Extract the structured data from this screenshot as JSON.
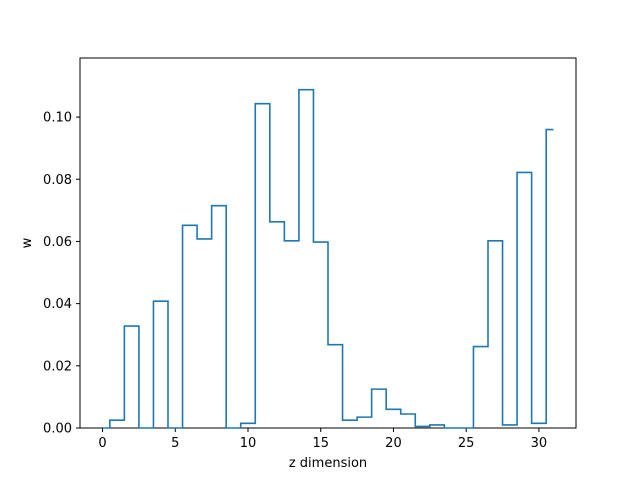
{
  "chart_data": {
    "type": "line",
    "drawstyle": "steps-mid",
    "title": "",
    "xlabel": "z dimension",
    "ylabel": "w",
    "xlim": [
      -1.55,
      32.55
    ],
    "ylim": [
      0.0,
      0.119
    ],
    "xticks": [
      0,
      5,
      10,
      15,
      20,
      25,
      30
    ],
    "xtick_labels": [
      "0",
      "5",
      "10",
      "15",
      "20",
      "25",
      "30"
    ],
    "yticks": [
      0.0,
      0.02,
      0.04,
      0.06,
      0.08,
      0.1
    ],
    "ytick_labels": [
      "0.00",
      "0.02",
      "0.04",
      "0.06",
      "0.08",
      "0.10"
    ],
    "grid": false,
    "series": [
      {
        "color": "#1f77b4",
        "x": [
          0,
          1,
          2,
          3,
          4,
          5,
          6,
          7,
          8,
          9,
          10,
          11,
          12,
          13,
          14,
          15,
          16,
          17,
          18,
          19,
          20,
          21,
          22,
          23,
          24,
          25,
          26,
          27,
          28,
          29,
          30,
          31
        ],
        "values": [
          0.0,
          0.0025,
          0.0328,
          0.0,
          0.0408,
          0.0,
          0.0652,
          0.0608,
          0.0715,
          0.0,
          0.0015,
          0.1043,
          0.0663,
          0.0602,
          0.1088,
          0.0598,
          0.0268,
          0.0025,
          0.0035,
          0.0125,
          0.006,
          0.0045,
          0.0005,
          0.001,
          0.0,
          0.0,
          0.0262,
          0.0602,
          0.001,
          0.0822,
          0.0015,
          0.096
        ]
      }
    ]
  }
}
